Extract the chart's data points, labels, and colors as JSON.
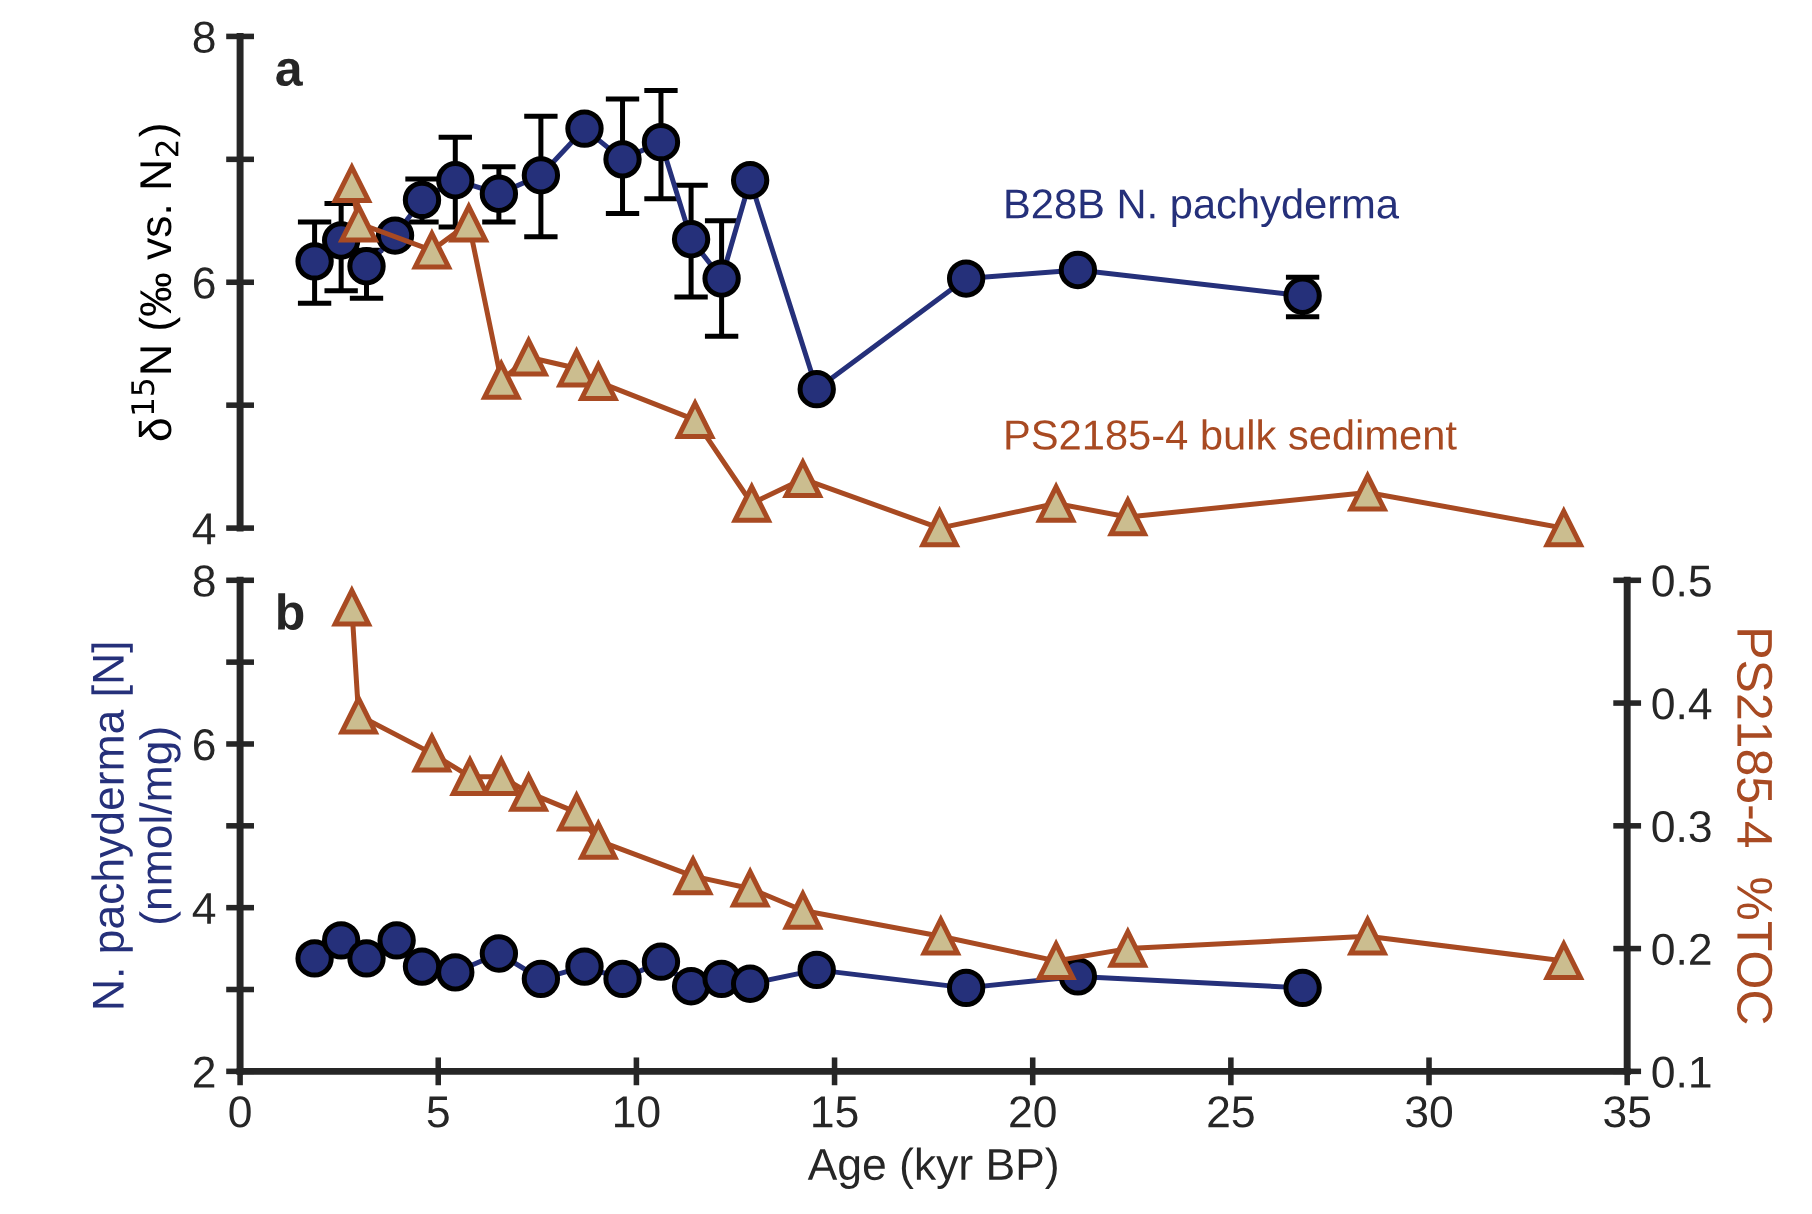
{
  "chart_data": [
    {
      "type": "line",
      "ylabel": "δ$^{15}$N (‰ vs. N$_{2}$)",
      "annotations": [
        "a"
      ],
      "xlim": [
        0,
        35
      ],
      "ylim": [
        4,
        8
      ],
      "yticks": [
        4,
        {
          "value": 5,
          "label": null
        },
        6,
        {
          "value": 7,
          "label": null
        },
        8
      ],
      "tick_labels": "y",
      "grid": false,
      "legend": false,
      "line_style": "solid",
      "series": [
        {
          "name": "B28B N. pachyderma",
          "color": "#25307a",
          "marker": "circle",
          "x": [
            1.88,
            2.55,
            3.19,
            3.91,
            4.59,
            5.43,
            6.53,
            7.59,
            8.69,
            9.65,
            10.62,
            11.38,
            12.15,
            12.87,
            14.55,
            18.32,
            21.14,
            26.81
          ],
          "values": [
            6.17,
            6.34,
            6.13,
            6.38,
            6.67,
            6.83,
            6.72,
            6.87,
            7.25,
            7.0,
            7.14,
            6.35,
            6.03,
            6.83,
            5.13,
            6.03,
            6.1,
            5.89
          ],
          "errors": [
            [
              5.83,
              6.49
            ],
            [
              5.93,
              6.64
            ],
            [
              5.87,
              6.26
            ],
            null,
            [
              6.49,
              6.84
            ],
            [
              6.45,
              7.18
            ],
            [
              6.49,
              6.94
            ],
            [
              6.37,
              7.35
            ],
            null,
            [
              6.56,
              7.49
            ],
            [
              6.68,
              7.56
            ],
            [
              5.88,
              6.79
            ],
            [
              5.56,
              6.5
            ],
            null,
            null,
            null,
            null,
            [
              5.72,
              6.04
            ]
          ]
        },
        {
          "name": "PS2185-4 bulk sediment",
          "color": "#a84a22",
          "marker": "triangle",
          "x": [
            2.82,
            2.99,
            4.84,
            5.77,
            6.59,
            7.28,
            8.49,
            9.04,
            11.48,
            12.91,
            14.2,
            17.65,
            20.59,
            22.4,
            28.45,
            33.4
          ],
          "values": [
            6.8,
            6.48,
            6.26,
            6.48,
            5.2,
            5.39,
            5.3,
            5.19,
            4.88,
            4.2,
            4.4,
            4.0,
            4.2,
            4.09,
            4.29,
            4.0
          ]
        }
      ]
    },
    {
      "type": "line",
      "xlabel": "Age (kyr BP)",
      "ylabel": "N. pachyderma [N]\n(nmol/mg)",
      "y2label": "PS2185-4  %TOC",
      "annotations": [
        "b"
      ],
      "xlim": [
        0,
        35
      ],
      "xticks": [
        0,
        5,
        10,
        15,
        20,
        25,
        30,
        35
      ],
      "ylim": [
        2,
        8
      ],
      "yticks": [
        2,
        {
          "value": 3,
          "label": null
        },
        4,
        {
          "value": 5,
          "label": null
        },
        6,
        {
          "value": 7,
          "label": null
        },
        8
      ],
      "y2lim": [
        0.1,
        0.5
      ],
      "y2ticks": [
        0.1,
        0.2,
        0.3,
        0.4,
        0.5
      ],
      "grid": false,
      "legend": false,
      "line_style": "solid",
      "series": [
        {
          "color": "#25307a",
          "marker": "circle",
          "x": [
            1.88,
            2.55,
            3.19,
            3.95,
            4.59,
            5.43,
            6.53,
            7.59,
            8.69,
            9.65,
            10.62,
            11.38,
            12.15,
            12.87,
            14.55,
            18.32,
            21.14,
            26.81
          ],
          "values": [
            3.38,
            3.6,
            3.38,
            3.6,
            3.28,
            3.21,
            3.44,
            3.13,
            3.28,
            3.13,
            3.34,
            3.04,
            3.13,
            3.07,
            3.24,
            3.02,
            3.16,
            3.02
          ]
        },
        {
          "color": "#a84a22",
          "marker": "triangle",
          "axis": "y2",
          "x": [
            2.82,
            2.99,
            4.84,
            5.8,
            6.59,
            7.28,
            8.49,
            9.04,
            11.43,
            12.87,
            14.2,
            17.68,
            20.59,
            22.4,
            28.45,
            33.4
          ],
          "values": [
            0.478,
            0.39,
            0.359,
            0.34,
            0.34,
            0.327,
            0.311,
            0.288,
            0.259,
            0.249,
            0.231,
            0.21,
            0.19,
            0.2,
            0.21,
            0.19
          ]
        }
      ]
    }
  ]
}
